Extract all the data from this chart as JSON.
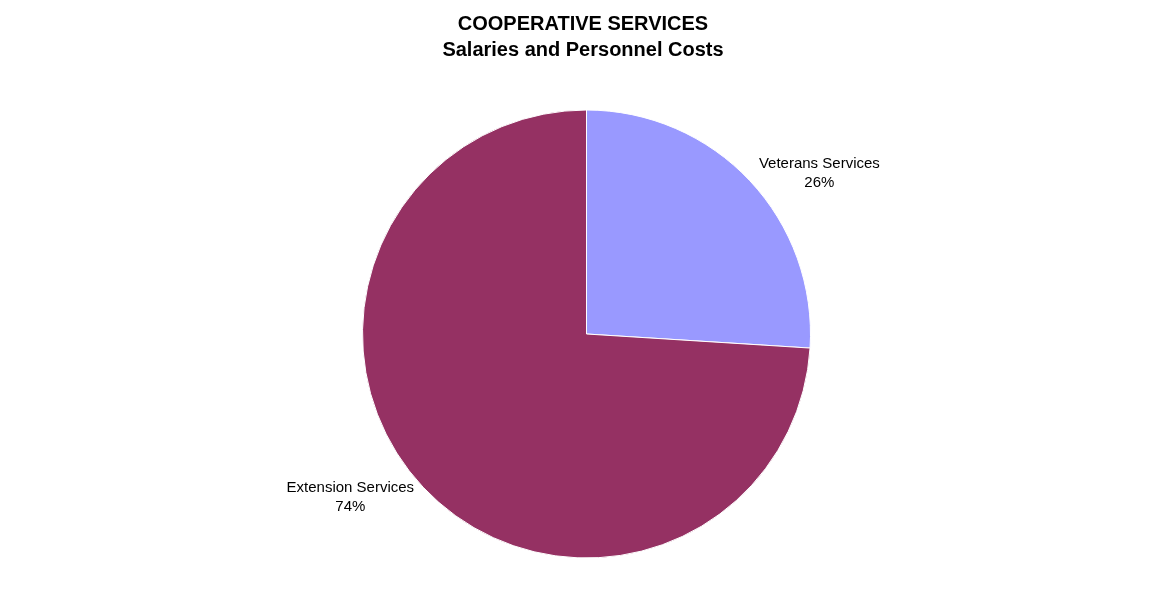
{
  "chart_data": {
    "type": "pie",
    "title": "COOPERATIVE SERVICES\nSalaries and Personnel Costs",
    "categories": [
      "Veterans Services",
      "Extension Services"
    ],
    "values": [
      26,
      74
    ],
    "colors": [
      "#9999ff",
      "#953163"
    ],
    "value_labels": [
      "26%",
      "74%"
    ],
    "legend": false
  }
}
